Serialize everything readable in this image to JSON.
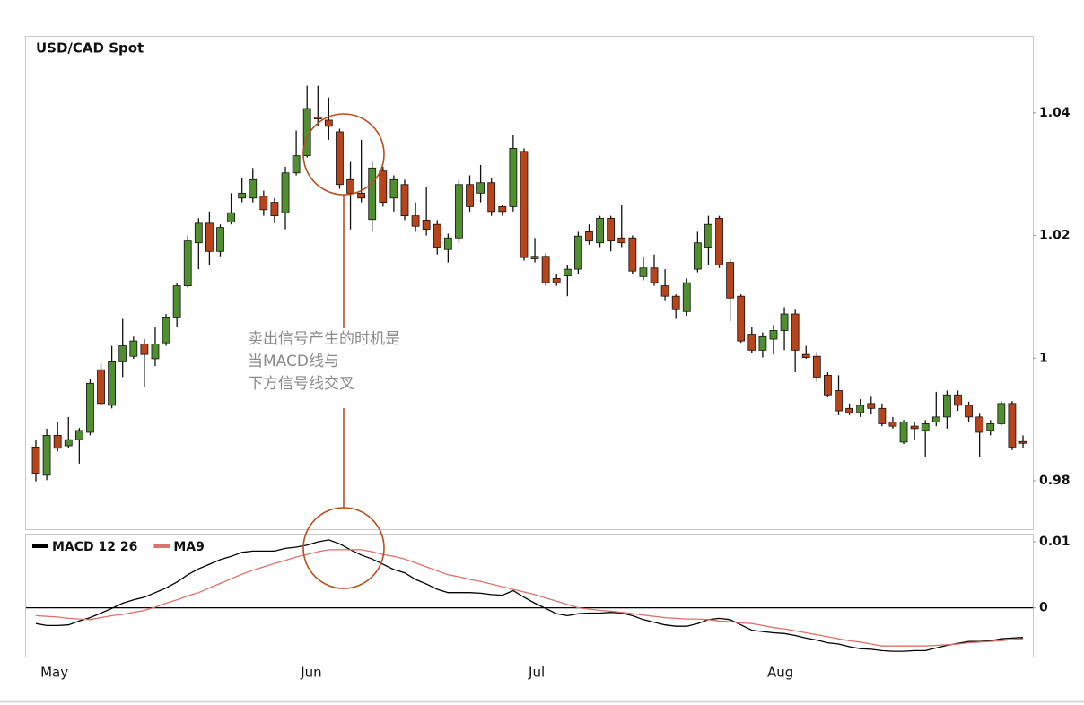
{
  "chart_data": [
    {
      "type": "candlestick",
      "title": "USD/CAD Spot",
      "open": [
        0.9855,
        0.9809,
        0.9874,
        0.9857,
        0.9867,
        0.9879,
        0.9981,
        0.9923,
        0.9994,
        1.0003,
        1.0023,
        0.9999,
        1.0025,
        1.0067,
        1.0118,
        1.0188,
        1.022,
        1.0174,
        1.0222,
        1.0261,
        1.0261,
        1.0264,
        1.0254,
        1.0237,
        1.0302,
        1.033,
        1.0393,
        1.0388,
        1.0369,
        1.0291,
        1.0269,
        1.0226,
        1.0305,
        1.0261,
        1.0283,
        1.0232,
        1.0225,
        1.0218,
        1.0177,
        1.0196,
        1.0283,
        1.0269,
        1.0286,
        1.0247,
        1.0247,
        1.0337,
        1.0166,
        1.0166,
        1.013,
        1.0134,
        1.0145,
        1.0206,
        1.0188,
        1.0228,
        1.0196,
        1.0196,
        1.0133,
        1.0147,
        1.0118,
        1.0101,
        1.0076,
        1.0145,
        1.0181,
        1.0228,
        1.0156,
        1.0101,
        1.0039,
        1.0013,
        1.0031,
        1.0045,
        1.0072,
        1.0006,
        1.0003,
        0.9972,
        0.9947,
        0.9918,
        0.9911,
        0.9926,
        0.9918,
        0.9896,
        0.9863,
        0.9889,
        0.9882,
        0.9896,
        0.9904,
        0.994,
        0.9923,
        0.9904,
        0.9882,
        0.9893,
        0.9926,
        0.9864
      ],
      "high": [
        0.9867,
        0.9885,
        0.9896,
        0.9904,
        0.9886,
        0.9966,
        0.9991,
        1.002,
        1.0064,
        1.0035,
        1.0031,
        1.005,
        1.0072,
        1.0123,
        1.02,
        1.0228,
        1.0239,
        1.0218,
        1.0269,
        1.0293,
        1.031,
        1.0273,
        1.0261,
        1.0312,
        1.0371,
        1.0444,
        1.0444,
        1.0425,
        1.0374,
        1.032,
        1.0356,
        1.032,
        1.0312,
        1.0298,
        1.0291,
        1.0254,
        1.0279,
        1.0225,
        1.0203,
        1.0291,
        1.0298,
        1.0315,
        1.0293,
        1.025,
        1.0364,
        1.0342,
        1.0196,
        1.0171,
        1.0137,
        1.0152,
        1.0206,
        1.0218,
        1.0232,
        1.0232,
        1.025,
        1.02,
        1.0166,
        1.0169,
        1.0145,
        1.0104,
        1.013,
        1.0206,
        1.0232,
        1.0232,
        1.0162,
        1.0104,
        1.005,
        1.0042,
        1.0054,
        1.0083,
        1.0079,
        1.002,
        1.001,
        0.9977,
        0.9972,
        0.9926,
        0.9933,
        0.9937,
        0.9926,
        0.9904,
        0.9899,
        0.9896,
        0.9899,
        0.9945,
        0.9947,
        0.9947,
        0.9929,
        0.9909,
        0.9899,
        0.993,
        0.993,
        0.9874
      ],
      "low": [
        0.9799,
        0.9801,
        0.9848,
        0.9853,
        0.9828,
        0.9874,
        0.9923,
        0.9918,
        0.9969,
        0.9999,
        0.9952,
        0.9987,
        1.002,
        1.005,
        1.0115,
        1.0145,
        1.0152,
        1.0166,
        1.0218,
        1.0254,
        1.0254,
        1.0232,
        1.022,
        1.021,
        1.0298,
        1.0327,
        1.0378,
        1.0356,
        1.0276,
        1.021,
        1.0254,
        1.0206,
        1.0247,
        1.0239,
        1.0225,
        1.0206,
        1.02,
        1.0169,
        1.0156,
        1.0188,
        1.0239,
        1.0254,
        1.0232,
        1.0232,
        1.0239,
        1.0159,
        1.0156,
        1.0118,
        1.0118,
        1.0101,
        1.0137,
        1.0185,
        1.0181,
        1.0174,
        1.0181,
        1.0137,
        1.0127,
        1.0118,
        1.0093,
        1.0064,
        1.0069,
        1.014,
        1.0152,
        1.0147,
        1.006,
        1.0025,
        1.0009,
        1.0001,
        1.0006,
        1.0013,
        0.9977,
        0.9999,
        0.9962,
        0.9936,
        0.9907,
        0.9907,
        0.9904,
        0.9908,
        0.9889,
        0.9885,
        0.986,
        0.9867,
        0.9838,
        0.9889,
        0.9885,
        0.9914,
        0.9896,
        0.9838,
        0.9874,
        0.989,
        0.985,
        0.9853
      ],
      "close": [
        0.9812,
        0.9874,
        0.9853,
        0.9867,
        0.9882,
        0.9959,
        0.9926,
        0.9994,
        1.002,
        1.0028,
        1.0006,
        1.0023,
        1.0067,
        1.0118,
        1.0191,
        1.022,
        1.0174,
        1.0213,
        1.0237,
        1.0269,
        1.0291,
        1.0242,
        1.0232,
        1.0302,
        1.033,
        1.0407,
        1.039,
        1.0378,
        1.0283,
        1.0269,
        1.0261,
        1.031,
        1.0254,
        1.0291,
        1.0232,
        1.0215,
        1.021,
        1.0181,
        1.0196,
        1.0283,
        1.0247,
        1.0286,
        1.0239,
        1.0239,
        1.0342,
        1.0164,
        1.0162,
        1.0123,
        1.0123,
        1.0145,
        1.0199,
        1.0191,
        1.0228,
        1.0191,
        1.0188,
        1.0142,
        1.0147,
        1.0123,
        1.0101,
        1.0079,
        1.0123,
        1.0188,
        1.0218,
        1.0152,
        1.0098,
        1.0028,
        1.0013,
        1.0035,
        1.0045,
        1.0072,
        1.0013,
        1.0001,
        0.9969,
        0.994,
        0.9914,
        0.9911,
        0.9923,
        0.9918,
        0.9893,
        0.9889,
        0.9896,
        0.9885,
        0.9893,
        0.9904,
        0.994,
        0.9923,
        0.9904,
        0.9879,
        0.9893,
        0.9926,
        0.9855,
        0.9861
      ],
      "up_color": "#4f8f2f",
      "down_color": "#b8441c",
      "ylim": [
        0.9721,
        1.0524
      ],
      "yticks": [
        0.98,
        1,
        1.02,
        1.04
      ],
      "annotation": [
        "卖出信号产生的时机是",
        "当MACD线与",
        "下方信号线交叉"
      ]
    },
    {
      "type": "line",
      "categories": [
        null,
        "May",
        null,
        null,
        null,
        null,
        null,
        null,
        null,
        null,
        null,
        null,
        null,
        null,
        null,
        null,
        null,
        null,
        null,
        null,
        null,
        null,
        null,
        null,
        null,
        "Jun",
        null,
        null,
        null,
        null,
        null,
        null,
        null,
        null,
        null,
        null,
        null,
        null,
        null,
        null,
        null,
        null,
        null,
        null,
        null,
        null,
        "Jul",
        null,
        null,
        null,
        null,
        null,
        null,
        null,
        null,
        null,
        null,
        null,
        null,
        null,
        null,
        null,
        null,
        null,
        null,
        null,
        null,
        null,
        "Aug",
        null,
        null,
        null,
        null,
        null,
        null,
        null,
        null,
        null,
        null,
        null,
        null,
        null,
        null,
        null,
        null,
        null,
        null,
        null,
        null,
        null,
        null,
        null
      ],
      "series": [
        {
          "name": "MACD 12 26",
          "color": "#000000",
          "values": [
            -0.0024,
            -0.0027,
            -0.0027,
            -0.0026,
            -0.002,
            -0.0015,
            -0.0008,
            -0.0001,
            0.0007,
            0.0012,
            0.0016,
            0.0023,
            0.003,
            0.0039,
            0.005,
            0.0059,
            0.0066,
            0.0073,
            0.0078,
            0.0084,
            0.0086,
            0.0086,
            0.0086,
            0.009,
            0.0092,
            0.0095,
            0.01,
            0.0103,
            0.0097,
            0.0088,
            0.008,
            0.0074,
            0.0066,
            0.0058,
            0.0053,
            0.0043,
            0.0036,
            0.0028,
            0.0023,
            0.0023,
            0.0023,
            0.0022,
            0.002,
            0.0019,
            0.0026,
            0.0016,
            0.0007,
            -0.0001,
            -0.0009,
            -0.0012,
            -0.0009,
            -0.0008,
            -0.0008,
            -0.0007,
            -0.0008,
            -0.0012,
            -0.0018,
            -0.0022,
            -0.0026,
            -0.0028,
            -0.0028,
            -0.0024,
            -0.0018,
            -0.0016,
            -0.0018,
            -0.0026,
            -0.0034,
            -0.0036,
            -0.0038,
            -0.0039,
            -0.0042,
            -0.0046,
            -0.0049,
            -0.0053,
            -0.0055,
            -0.0059,
            -0.0062,
            -0.0063,
            -0.0065,
            -0.0066,
            -0.0066,
            -0.0065,
            -0.0065,
            -0.0061,
            -0.0057,
            -0.0054,
            -0.0051,
            -0.0051,
            -0.005,
            -0.0047,
            -0.0046,
            -0.0045
          ]
        },
        {
          "name": "MA9",
          "color": "#d9736b",
          "values": [
            -0.0012,
            -0.0013,
            -0.0014,
            -0.0016,
            -0.0017,
            -0.0018,
            -0.0015,
            -0.0012,
            -0.001,
            -0.0007,
            -0.0004,
            0.0001,
            0.0007,
            0.0012,
            0.0018,
            0.0023,
            0.003,
            0.0037,
            0.0044,
            0.0051,
            0.0057,
            0.0062,
            0.0067,
            0.0072,
            0.0077,
            0.0081,
            0.0085,
            0.0088,
            0.0088,
            0.0088,
            0.0088,
            0.0085,
            0.0081,
            0.0078,
            0.0074,
            0.0068,
            0.0062,
            0.0056,
            0.005,
            0.0047,
            0.0043,
            0.004,
            0.0036,
            0.0032,
            0.0028,
            0.0024,
            0.002,
            0.0015,
            0.001,
            0.0005,
            0.0,
            -0.0002,
            -0.0004,
            -0.0005,
            -0.0007,
            -0.0009,
            -0.0011,
            -0.0013,
            -0.0015,
            -0.0016,
            -0.0017,
            -0.0017,
            -0.0018,
            -0.002,
            -0.0021,
            -0.0023,
            -0.0024,
            -0.0027,
            -0.003,
            -0.0032,
            -0.0035,
            -0.0038,
            -0.0041,
            -0.0044,
            -0.0047,
            -0.005,
            -0.0052,
            -0.0055,
            -0.0058,
            -0.0058,
            -0.0058,
            -0.0058,
            -0.0058,
            -0.0057,
            -0.0056,
            -0.0055,
            -0.0053,
            -0.0052,
            -0.0051,
            -0.005,
            -0.0048,
            -0.0047
          ]
        }
      ],
      "ylim": [
        -0.0074,
        0.0111
      ],
      "yticks": [
        0,
        0.01
      ],
      "zero_line": true
    }
  ]
}
